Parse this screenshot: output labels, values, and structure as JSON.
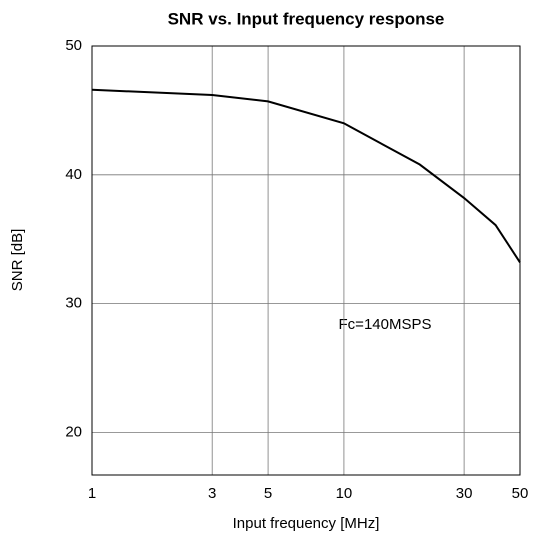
{
  "chart_data": {
    "type": "line",
    "title": "SNR vs. Input frequency response",
    "x_label": "Input frequency [MHz]",
    "y_label": "SNR [dB]",
    "annotation": "Fc=140MSPS",
    "x": [
      1,
      3,
      5,
      10,
      20,
      30,
      40,
      50
    ],
    "series": [
      {
        "name": "SNR",
        "color": "#000000",
        "values": [
          46.6,
          46.2,
          45.7,
          44.0,
          40.8,
          38.2,
          36.1,
          33.2
        ]
      }
    ],
    "xscale": "log",
    "xlim": [
      1,
      50
    ],
    "xticks": [
      1,
      3,
      5,
      10,
      30,
      50
    ],
    "ylim": [
      16.7,
      50
    ],
    "yticks": [
      20,
      30,
      40,
      50
    ],
    "grid": true
  }
}
